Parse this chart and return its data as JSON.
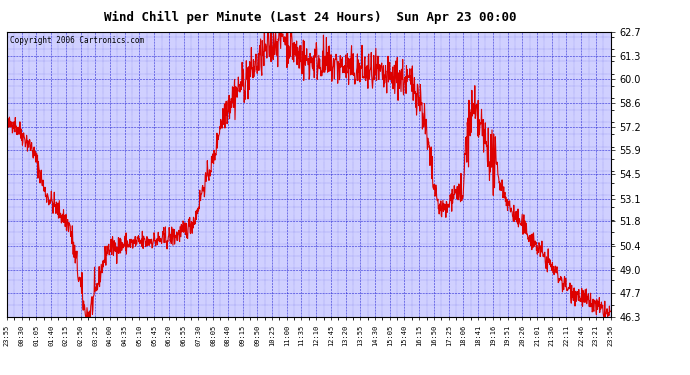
{
  "title": "Wind Chill per Minute (Last 24 Hours)  Sun Apr 23 00:00",
  "copyright": "Copyright 2006 Cartronics.com",
  "y_ticks": [
    46.3,
    47.7,
    49.0,
    50.4,
    51.8,
    53.1,
    54.5,
    55.9,
    57.2,
    58.6,
    60.0,
    61.3,
    62.7
  ],
  "ylim": [
    46.3,
    62.7
  ],
  "line_color": "#dd0000",
  "bg_color": "#ffffff",
  "plot_bg_color": "#d0d0ff",
  "grid_color": "#0000cc",
  "x_labels": [
    "23:55",
    "00:30",
    "01:05",
    "01:40",
    "02:15",
    "02:50",
    "03:25",
    "04:00",
    "04:35",
    "05:10",
    "05:45",
    "06:20",
    "06:55",
    "07:30",
    "08:05",
    "08:40",
    "09:15",
    "09:50",
    "10:25",
    "11:00",
    "11:35",
    "12:10",
    "12:45",
    "13:20",
    "13:55",
    "14:30",
    "15:05",
    "15:40",
    "16:15",
    "16:50",
    "17:25",
    "18:06",
    "18:41",
    "19:16",
    "19:51",
    "20:26",
    "21:01",
    "21:36",
    "22:11",
    "22:46",
    "23:21",
    "23:56"
  ],
  "num_points": 1441,
  "figsize": [
    6.9,
    3.75
  ],
  "dpi": 100,
  "key_times": [
    0.0,
    0.25,
    0.5,
    0.75,
    1.0,
    1.25,
    1.5,
    1.75,
    2.0,
    2.25,
    2.5,
    2.75,
    3.0,
    3.1,
    3.25,
    3.5,
    3.75,
    4.0,
    4.25,
    4.5,
    4.75,
    5.0,
    5.25,
    5.5,
    5.75,
    6.0,
    6.25,
    6.5,
    6.75,
    7.0,
    7.25,
    7.5,
    7.75,
    8.0,
    8.25,
    8.5,
    8.75,
    9.0,
    9.25,
    9.5,
    9.75,
    10.0,
    10.25,
    10.5,
    10.75,
    11.0,
    11.25,
    11.5,
    11.75,
    12.0,
    12.25,
    12.5,
    12.75,
    13.0,
    13.25,
    13.5,
    13.75,
    14.0,
    14.25,
    14.5,
    14.75,
    15.0,
    15.25,
    15.5,
    15.75,
    16.0,
    16.25,
    16.5,
    16.75,
    17.0,
    17.1,
    17.25,
    17.5,
    17.75,
    18.0,
    18.1,
    18.25,
    18.5,
    18.75,
    19.0,
    19.25,
    19.5,
    19.75,
    20.0,
    20.25,
    20.5,
    20.75,
    21.0,
    21.25,
    21.5,
    21.75,
    22.0,
    22.25,
    22.5,
    22.75,
    23.0,
    23.25,
    23.5,
    23.75,
    24.0
  ],
  "key_values": [
    57.2,
    57.5,
    57.0,
    56.5,
    56.0,
    55.0,
    53.5,
    53.0,
    52.5,
    52.0,
    51.5,
    49.5,
    47.5,
    46.5,
    46.4,
    47.5,
    49.0,
    50.2,
    50.3,
    50.4,
    50.5,
    50.5,
    50.6,
    50.6,
    50.7,
    50.7,
    50.8,
    50.9,
    51.0,
    51.2,
    51.5,
    52.0,
    53.5,
    54.5,
    55.5,
    57.5,
    58.5,
    59.0,
    59.5,
    60.0,
    60.5,
    61.0,
    61.5,
    62.0,
    62.3,
    62.5,
    62.0,
    61.5,
    61.2,
    61.0,
    61.1,
    61.0,
    60.8,
    60.8,
    60.7,
    60.6,
    60.5,
    60.5,
    60.4,
    60.3,
    60.2,
    60.0,
    60.0,
    60.1,
    60.0,
    59.8,
    59.5,
    58.5,
    56.0,
    53.5,
    53.0,
    52.5,
    52.5,
    53.5,
    53.5,
    52.5,
    56.5,
    58.0,
    57.5,
    56.5,
    55.5,
    54.5,
    53.5,
    52.5,
    52.0,
    51.5,
    51.0,
    50.5,
    50.0,
    49.5,
    49.0,
    48.5,
    48.0,
    47.8,
    47.5,
    47.3,
    47.0,
    46.8,
    46.6,
    46.4
  ]
}
